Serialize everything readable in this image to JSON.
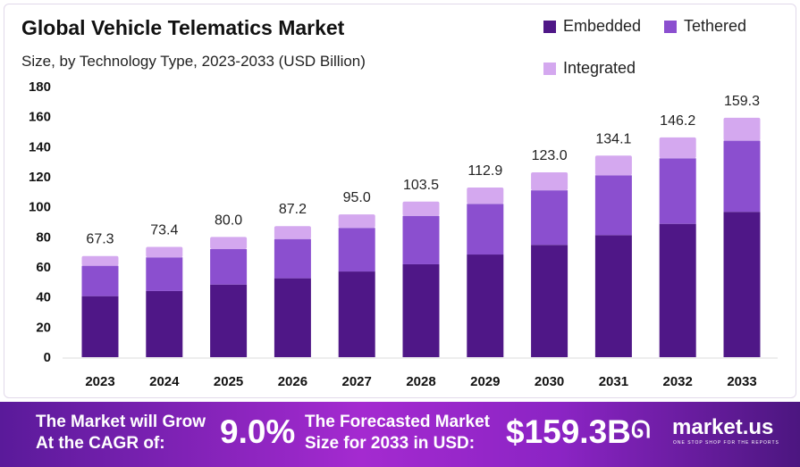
{
  "chart_data": {
    "type": "bar",
    "stacked": true,
    "title": "Global Vehicle Telematics Market",
    "subtitle": "Size, by Technology Type, 2023-2033 (USD Billion)",
    "categories": [
      "2023",
      "2024",
      "2025",
      "2026",
      "2027",
      "2028",
      "2029",
      "2030",
      "2031",
      "2032",
      "2033"
    ],
    "series": [
      {
        "name": "Embedded",
        "color": "#4f1787",
        "values": [
          40.6,
          44.0,
          48.3,
          52.5,
          57.0,
          61.8,
          68.3,
          74.7,
          81.2,
          88.7,
          96.7
        ]
      },
      {
        "name": "Tethered",
        "color": "#8b4fcf",
        "values": [
          20.2,
          22.4,
          23.6,
          26.1,
          29.0,
          32.2,
          33.7,
          36.3,
          39.8,
          43.6,
          47.3
        ]
      },
      {
        "name": "Integrated",
        "color": "#d4a8ef",
        "values": [
          6.5,
          7.0,
          8.1,
          8.6,
          9.0,
          9.5,
          10.9,
          12.0,
          13.1,
          13.9,
          15.3
        ]
      }
    ],
    "totals": [
      "67.3",
      "73.4",
      "80.0",
      "87.2",
      "95.0",
      "103.5",
      "112.9",
      "123.0",
      "134.1",
      "146.2",
      "159.3"
    ],
    "ylim": [
      0,
      180
    ],
    "yticks": [
      "0",
      "20",
      "40",
      "60",
      "80",
      "100",
      "120",
      "140",
      "160",
      "180"
    ],
    "grid": false,
    "legend": "top-right"
  },
  "banner": {
    "cagr_label_1": "The Market will Grow",
    "cagr_label_2": "At the CAGR of:",
    "cagr_value": "9.0%",
    "forecast_label_1": "The Forecasted Market",
    "forecast_label_2": "Size for 2033 in USD:",
    "forecast_value": "$159.3B",
    "brand": "market.us",
    "tagline": "ONE STOP SHOP FOR THE REPORTS"
  }
}
